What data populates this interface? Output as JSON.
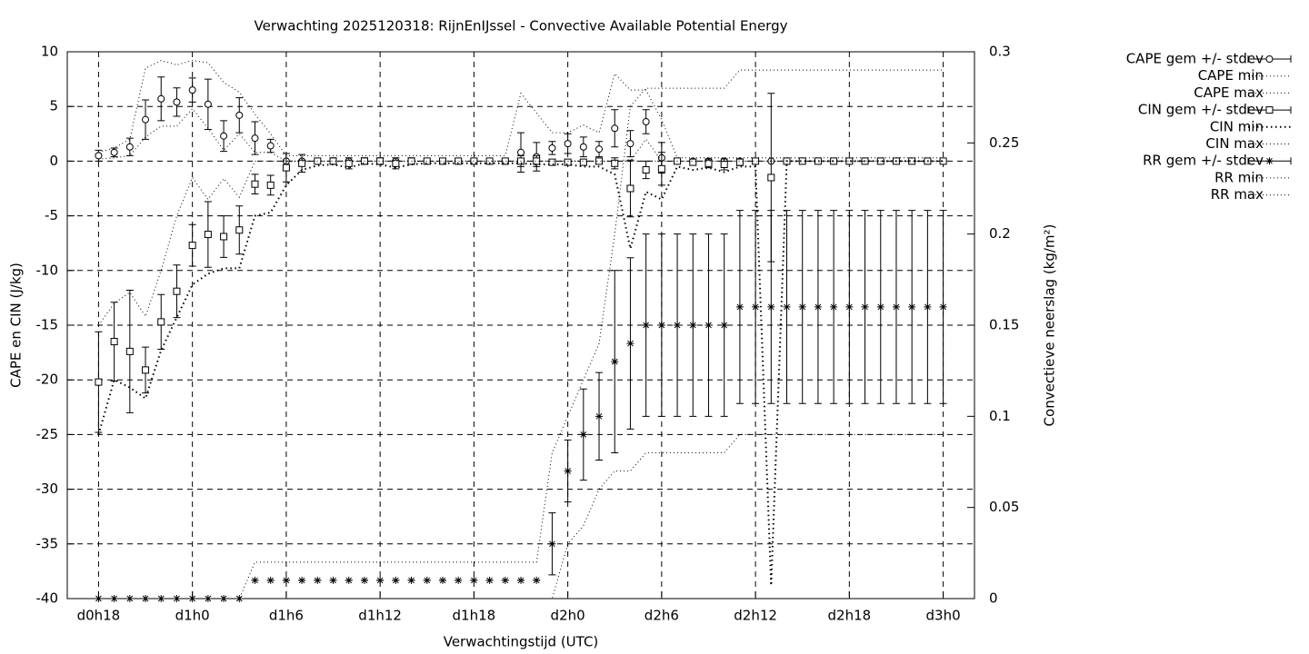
{
  "chart_data": {
    "type": "errorbar-line",
    "title": "Verwachting 2025120318: RijnEnIJssel - Convective Available Potential Energy",
    "xlabel": "Verwachtingstijd (UTC)",
    "ylabel": "CAPE en CIN (J/kg)",
    "y2label": "Convectieve neerslag (kg/m²)",
    "x": [
      18,
      19,
      20,
      21,
      22,
      23,
      24,
      25,
      26,
      27,
      28,
      29,
      30,
      31,
      32,
      33,
      34,
      35,
      36,
      37,
      38,
      39,
      40,
      41,
      42,
      43,
      44,
      45,
      46,
      47,
      48,
      49,
      50,
      51,
      52,
      53,
      54,
      55,
      56,
      57,
      58,
      59,
      60,
      61,
      62,
      63,
      64,
      65,
      66,
      67,
      68,
      69,
      70,
      71,
      72
    ],
    "xlim": [
      16,
      74
    ],
    "xticks": [
      {
        "value": 18,
        "label": "d0h18"
      },
      {
        "value": 24,
        "label": "d1h0"
      },
      {
        "value": 30,
        "label": "d1h6"
      },
      {
        "value": 36,
        "label": "d1h12"
      },
      {
        "value": 42,
        "label": "d1h18"
      },
      {
        "value": 48,
        "label": "d2h0"
      },
      {
        "value": 54,
        "label": "d2h6"
      },
      {
        "value": 60,
        "label": "d2h12"
      },
      {
        "value": 66,
        "label": "d2h18"
      },
      {
        "value": 72,
        "label": "d3h0"
      }
    ],
    "ylim": [
      -40,
      10
    ],
    "yticks": [
      -40,
      -35,
      -30,
      -25,
      -20,
      -15,
      -10,
      -5,
      0,
      5,
      10
    ],
    "y2lim": [
      0,
      0.3
    ],
    "y2ticks": [
      0,
      0.05,
      0.1,
      0.15,
      0.2,
      0.25,
      0.3
    ],
    "grid": true,
    "legend": "outside-top-right",
    "series": [
      {
        "name": "CAPE gem +/- stdev",
        "color": "#000000",
        "style": "errorbars",
        "marker": "circle",
        "values": [
          0.5,
          0.8,
          1.3,
          3.8,
          5.7,
          5.4,
          6.5,
          5.2,
          2.3,
          4.2,
          2.1,
          1.4,
          0,
          0,
          0,
          0,
          0,
          0,
          0,
          0,
          0,
          0,
          0,
          0,
          0,
          0,
          0,
          0.8,
          0.4,
          1.2,
          1.6,
          1.3,
          1.1,
          3.0,
          1.6,
          3.6,
          0.3,
          0,
          0,
          0,
          0,
          0,
          0,
          0,
          0,
          0,
          0,
          0,
          0,
          0,
          0,
          0,
          0,
          0,
          0
        ],
        "errors": [
          0.5,
          0.4,
          0.8,
          1.8,
          2.0,
          1.3,
          1.1,
          2.3,
          1.4,
          1.6,
          1.5,
          0.6,
          0,
          0,
          0,
          0,
          0,
          0,
          0,
          0,
          0,
          0,
          0,
          0,
          0,
          0,
          0,
          1.8,
          1.3,
          0.6,
          0.9,
          0.9,
          0.7,
          1.7,
          1.2,
          1.1,
          1.4,
          0,
          0,
          0,
          0,
          0,
          0,
          0,
          0,
          0,
          0,
          0,
          0,
          0,
          0,
          0,
          0,
          0,
          0
        ]
      },
      {
        "name": "CAPE min",
        "color": "#000000",
        "style": "line",
        "dash": "1,3",
        "values": [
          0.2,
          0.3,
          0.5,
          2.2,
          3.2,
          3.2,
          4.8,
          3.0,
          1.0,
          2.5,
          0.8,
          0.8,
          0,
          0,
          0,
          0,
          0,
          0,
          0,
          0,
          0,
          0,
          0,
          0,
          0,
          0,
          0,
          0,
          0,
          0,
          0,
          0,
          0,
          0,
          0,
          2.0,
          0,
          0,
          0,
          0,
          0,
          0,
          0,
          0,
          0,
          0,
          0,
          0,
          0,
          0,
          0,
          0,
          0,
          0,
          0
        ]
      },
      {
        "name": "CAPE max",
        "color": "#000000",
        "style": "line",
        "dash": "1,3",
        "values": [
          0.8,
          1.2,
          2.0,
          8.5,
          9.2,
          8.8,
          9.2,
          9.0,
          7.2,
          6.3,
          4.3,
          2.5,
          0.5,
          0.5,
          0.5,
          0.5,
          0.5,
          0.5,
          0.5,
          0.5,
          0.5,
          0.5,
          0.5,
          0.5,
          0.5,
          0.5,
          0.5,
          6.2,
          4.4,
          2.6,
          2.6,
          3.3,
          2.6,
          8.0,
          6.5,
          6.5,
          3.8,
          0.3,
          0.3,
          0.3,
          0.3,
          0.3,
          0.3,
          0.3,
          0.3,
          0.3,
          0.3,
          0.3,
          0.3,
          0.3,
          0.3,
          0.3,
          0.3,
          0.3,
          0.3
        ]
      },
      {
        "name": "CIN gem +/- stdev",
        "color": "#000000",
        "style": "errorbars",
        "marker": "square",
        "values": [
          -20.2,
          -16.5,
          -17.4,
          -19.1,
          -14.7,
          -11.9,
          -7.7,
          -6.7,
          -6.9,
          -6.3,
          -2.1,
          -2.2,
          -0.6,
          -0.2,
          0,
          0,
          -0.2,
          0,
          0,
          -0.2,
          0,
          0,
          0,
          0,
          0,
          0,
          0,
          0,
          0,
          -0.1,
          -0.1,
          -0.1,
          0,
          -0.2,
          -2.5,
          -0.8,
          -0.7,
          0,
          -0.1,
          -0.2,
          -0.3,
          -0.1,
          0,
          -1.5,
          0,
          0,
          0,
          0,
          0,
          0,
          0,
          0,
          0,
          0,
          0
        ],
        "errors": [
          4.6,
          3.6,
          5.6,
          2.1,
          2.5,
          2.4,
          1.9,
          3.0,
          1.9,
          2.2,
          0.9,
          0.9,
          1.3,
          0.8,
          0,
          0.3,
          0.5,
          0.3,
          0.3,
          0.5,
          0.3,
          0,
          0,
          0,
          0,
          0,
          0,
          0.5,
          0.5,
          0.2,
          0,
          0,
          0,
          0.5,
          2.6,
          0.8,
          1.5,
          0,
          0,
          0.4,
          0.5,
          0.3,
          0,
          7.7,
          0,
          0,
          0,
          0,
          0,
          0,
          0,
          0,
          0,
          0,
          0
        ]
      },
      {
        "name": "CIN min",
        "color": "#000000",
        "style": "line",
        "dash": "1.5,3.5",
        "width": 2,
        "values": [
          -25,
          -20,
          -20.7,
          -21.7,
          -17.3,
          -14.3,
          -11.3,
          -10.3,
          -9.8,
          -9.8,
          -5,
          -4.7,
          -2.2,
          -0.8,
          -0.4,
          -0.3,
          -0.6,
          -0.2,
          -0.3,
          -0.6,
          -0.3,
          -0.2,
          -0.2,
          -0.2,
          -0.2,
          -0.2,
          -0.2,
          -0.2,
          -0.3,
          -0.3,
          -0.3,
          -0.5,
          -0.5,
          -1.2,
          -8,
          -2.8,
          -3.5,
          -0.5,
          -0.8,
          -0.6,
          -1.0,
          -0.5,
          -0.5,
          -38.8,
          0,
          0,
          0,
          0,
          0,
          0,
          0,
          0,
          0,
          0,
          0
        ]
      },
      {
        "name": "CIN max",
        "color": "#000000",
        "style": "line",
        "dash": "1,3",
        "values": [
          -15,
          -13,
          -12,
          -14.2,
          -10,
          -5,
          -1.5,
          -3.5,
          -1.6,
          -3.3,
          0,
          0,
          0,
          0,
          0,
          0,
          0,
          0,
          0,
          0,
          0,
          0,
          0,
          0,
          0,
          0,
          0,
          0,
          0,
          0,
          0,
          0,
          0,
          0,
          0,
          0,
          0,
          0,
          0,
          0,
          0,
          0,
          0,
          0,
          0,
          0,
          0,
          0,
          0,
          0,
          0,
          0,
          0,
          0,
          0
        ]
      },
      {
        "name": "RR gem +/- stdev",
        "color": "#000000",
        "style": "errorbars",
        "marker": "asterisk",
        "axis": "y2",
        "values": [
          0,
          0,
          0,
          0,
          0,
          0,
          0,
          0,
          0,
          0,
          0.01,
          0.01,
          0.01,
          0.01,
          0.01,
          0.01,
          0.01,
          0.01,
          0.01,
          0.01,
          0.01,
          0.01,
          0.01,
          0.01,
          0.01,
          0.01,
          0.01,
          0.01,
          0.01,
          0.03,
          0.07,
          0.09,
          0.1,
          0.13,
          0.14,
          0.15,
          0.15,
          0.15,
          0.15,
          0.15,
          0.15,
          0.16,
          0.16,
          0.16,
          0.16,
          0.16,
          0.16,
          0.16,
          0.16,
          0.16,
          0.16,
          0.16,
          0.16,
          0.16,
          0.16
        ],
        "errors": [
          0,
          0,
          0,
          0,
          0,
          0,
          0,
          0,
          0,
          0,
          0,
          0,
          0,
          0,
          0,
          0,
          0,
          0,
          0,
          0,
          0,
          0,
          0,
          0,
          0,
          0,
          0,
          0,
          0,
          0.017,
          0.017,
          0.025,
          0.024,
          0.05,
          0.047,
          0.05,
          0.05,
          0.05,
          0.05,
          0.05,
          0.05,
          0.053,
          0.053,
          0.053,
          0.053,
          0.053,
          0.053,
          0.053,
          0.053,
          0.053,
          0.053,
          0.053,
          0.053,
          0.053,
          0.053
        ]
      },
      {
        "name": "RR min",
        "color": "#000000",
        "style": "line",
        "dash": "1,3",
        "axis": "y2",
        "values": [
          0,
          0,
          0,
          0,
          0,
          0,
          0,
          0,
          0,
          0,
          0,
          0,
          0,
          0,
          0,
          0,
          0,
          0,
          0,
          0,
          0,
          0,
          0,
          0,
          0,
          0,
          0,
          0,
          0,
          0,
          0.03,
          0.04,
          0.06,
          0.07,
          0.07,
          0.08,
          0.08,
          0.08,
          0.08,
          0.08,
          0.08,
          0.09,
          0.09,
          0.09,
          0.09,
          0.09,
          0.09,
          0.09,
          0.09,
          0.09,
          0.09,
          0.09,
          0.09,
          0.09,
          0.09
        ]
      },
      {
        "name": "RR max",
        "color": "#000000",
        "style": "line",
        "dash": "1,3",
        "axis": "y2",
        "values": [
          0,
          0,
          0,
          0,
          0,
          0,
          0,
          0,
          0,
          0,
          0.02,
          0.02,
          0.02,
          0.02,
          0.02,
          0.02,
          0.02,
          0.02,
          0.02,
          0.02,
          0.02,
          0.02,
          0.02,
          0.02,
          0.02,
          0.02,
          0.02,
          0.02,
          0.02,
          0.08,
          0.1,
          0.12,
          0.14,
          0.2,
          0.27,
          0.28,
          0.28,
          0.28,
          0.28,
          0.28,
          0.28,
          0.29,
          0.29,
          0.29,
          0.29,
          0.29,
          0.29,
          0.29,
          0.29,
          0.29,
          0.29,
          0.29,
          0.29,
          0.29,
          0.29
        ]
      }
    ]
  }
}
